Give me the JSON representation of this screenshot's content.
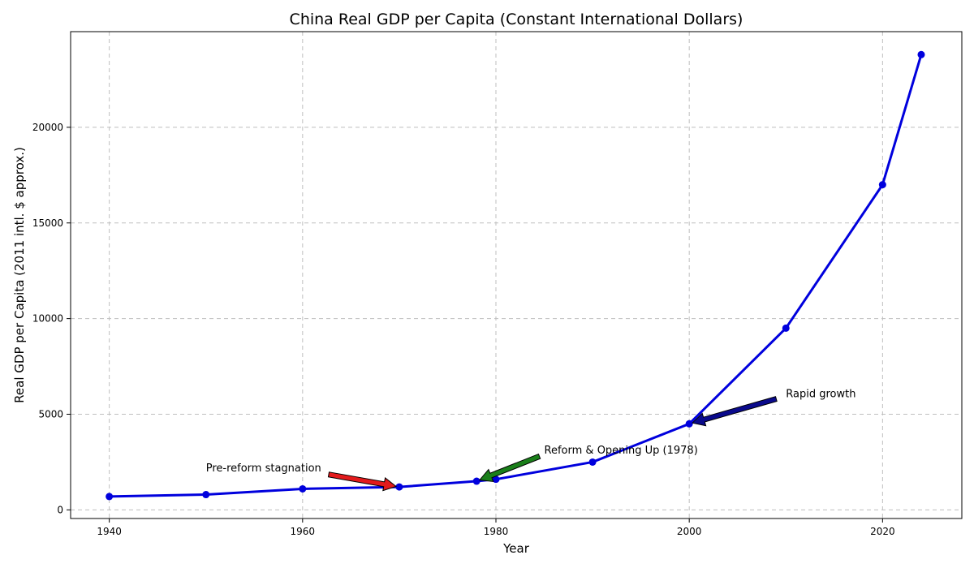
{
  "chart_data": {
    "type": "line",
    "title": "China Real GDP per Capita (Constant International Dollars)",
    "xlabel": "Year",
    "ylabel": "Real GDP per Capita (2011 intl. $ approx.)",
    "xlim": [
      1936,
      2028.2
    ],
    "ylim": [
      -450,
      25000
    ],
    "grid": true,
    "x_ticks": [
      1940,
      1960,
      1980,
      2000,
      2020
    ],
    "y_ticks": [
      0,
      5000,
      10000,
      15000,
      20000
    ],
    "series": [
      {
        "color": "#0000dd",
        "marker": "circle",
        "x": [
          1940,
          1950,
          1960,
          1970,
          1978,
          1980,
          1990,
          2000,
          2010,
          2020,
          2024
        ],
        "y": [
          700,
          800,
          1100,
          1200,
          1500,
          1600,
          2500,
          4500,
          9500,
          17000,
          23800
        ]
      }
    ],
    "annotations": [
      {
        "text": "Pre-reform stagnation",
        "text_at": [
          1950,
          2000
        ],
        "arrow_tail": [
          1962.7,
          1850
        ],
        "arrow_head": [
          1970,
          1200
        ],
        "color": "#e31a1c"
      },
      {
        "text": "Reform & Opening Up (1978)",
        "text_at": [
          1985,
          2950
        ],
        "arrow_tail": [
          1984.5,
          2800
        ],
        "arrow_head": [
          1978,
          1500
        ],
        "color": "#1a7f1a"
      },
      {
        "text": "Rapid growth",
        "text_at": [
          2010,
          5900
        ],
        "arrow_tail": [
          2009,
          5800
        ],
        "arrow_head": [
          2000,
          4500
        ],
        "color": "#0a0a8c"
      }
    ]
  }
}
